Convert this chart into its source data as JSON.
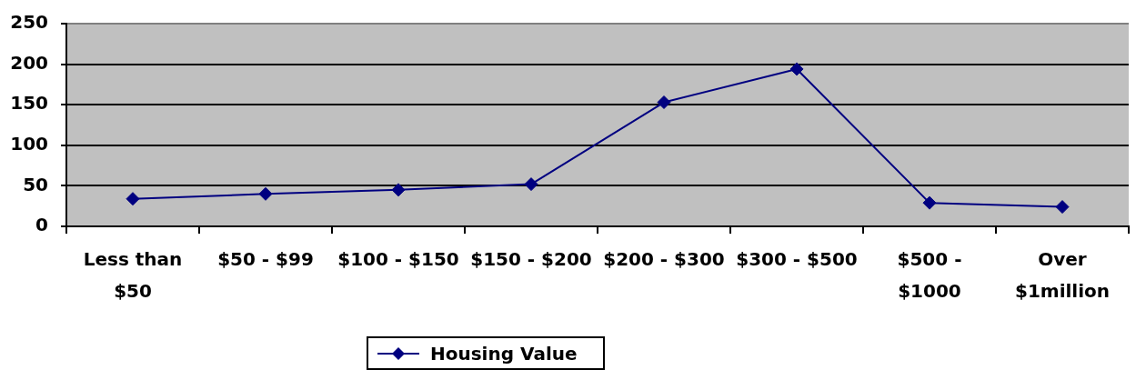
{
  "chart_data": {
    "type": "line",
    "categories": [
      "Less than $50",
      "$50 - $99",
      "$100 - $150",
      "$150 - $200",
      "$200 - $300",
      "$300 - $500",
      "$500 - $1000",
      "Over $1million"
    ],
    "series": [
      {
        "name": "Housing Value",
        "color": "#000080",
        "values": [
          34,
          40,
          45,
          52,
          153,
          194,
          29,
          24
        ]
      }
    ],
    "ylim": [
      0,
      250
    ],
    "yticks": [
      0,
      50,
      100,
      150,
      200,
      250
    ],
    "grid": "y",
    "legend": "bottom",
    "marker": "diamond",
    "line_style": "solid"
  }
}
